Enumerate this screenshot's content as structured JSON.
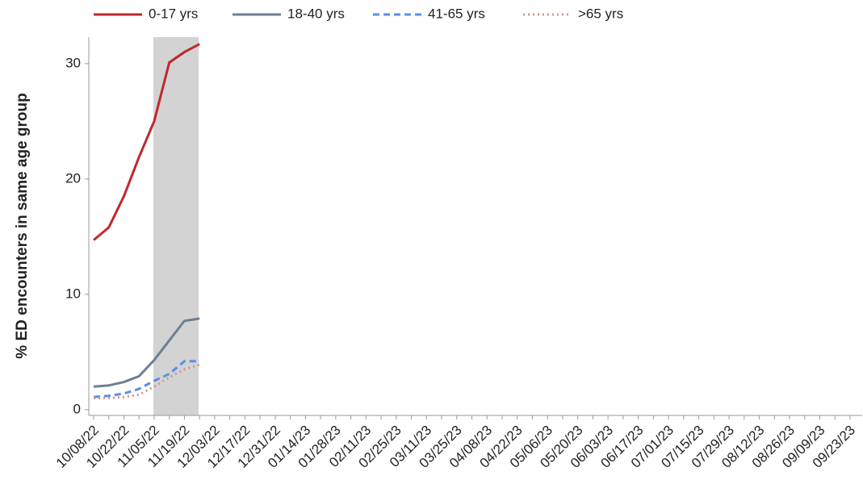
{
  "chart_data": {
    "type": "line",
    "y_label": "% ED encounters in same age group",
    "categories": [
      "10/08/22",
      null,
      "10/22/22",
      null,
      "11/05/22",
      null,
      "11/19/22",
      null,
      "12/03/22",
      null,
      "12/17/22",
      null,
      "12/31/22",
      null,
      "01/14/23",
      null,
      "01/28/23",
      null,
      "02/11/23",
      null,
      "02/25/23",
      null,
      "03/11/23",
      null,
      "03/25/23",
      null,
      "04/08/23",
      null,
      "04/22/23",
      null,
      "05/06/23",
      null,
      "05/20/23",
      null,
      "06/03/23",
      null,
      "06/17/23",
      null,
      "07/01/23",
      null,
      "07/15/23",
      null,
      "07/29/23",
      null,
      "08/12/23",
      null,
      "08/26/23",
      null,
      "09/09/23",
      null,
      "09/23/23"
    ],
    "series": [
      {
        "name": "0-17 yrs",
        "color": "#c0282d",
        "dash": "solid",
        "values": [
          14.7,
          15.8,
          18.5,
          21.9,
          25.0,
          30.1,
          31.0,
          31.7,
          null,
          null,
          null,
          null,
          null,
          null,
          null,
          null,
          null,
          null,
          null,
          null,
          null,
          null,
          null,
          null,
          null,
          null,
          null,
          null,
          null,
          null,
          null,
          null,
          null,
          null,
          null,
          null,
          null,
          null,
          null,
          null,
          null,
          null,
          null,
          null,
          null,
          null,
          null,
          null,
          null,
          null,
          null
        ]
      },
      {
        "name": "18-40 yrs",
        "color": "#6c7f93",
        "dash": "solid",
        "values": [
          2.0,
          2.1,
          2.4,
          2.9,
          4.3,
          6.0,
          7.7,
          7.9,
          null,
          null,
          null,
          null,
          null,
          null,
          null,
          null,
          null,
          null,
          null,
          null,
          null,
          null,
          null,
          null,
          null,
          null,
          null,
          null,
          null,
          null,
          null,
          null,
          null,
          null,
          null,
          null,
          null,
          null,
          null,
          null,
          null,
          null,
          null,
          null,
          null,
          null,
          null,
          null,
          null,
          null,
          null
        ]
      },
      {
        "name": "41-65 yrs",
        "color": "#5b8fe6",
        "dash": "dashed",
        "values": [
          1.1,
          1.2,
          1.4,
          1.8,
          2.5,
          3.1,
          4.2,
          4.2,
          null,
          null,
          null,
          null,
          null,
          null,
          null,
          null,
          null,
          null,
          null,
          null,
          null,
          null,
          null,
          null,
          null,
          null,
          null,
          null,
          null,
          null,
          null,
          null,
          null,
          null,
          null,
          null,
          null,
          null,
          null,
          null,
          null,
          null,
          null,
          null,
          null,
          null,
          null,
          null,
          null,
          null,
          null
        ]
      },
      {
        "name": ">65 yrs",
        "color": "#d4948f",
        "dash": "dotted",
        "values": [
          1.0,
          1.0,
          1.1,
          1.3,
          2.0,
          2.8,
          3.5,
          3.9,
          null,
          null,
          null,
          null,
          null,
          null,
          null,
          null,
          null,
          null,
          null,
          null,
          null,
          null,
          null,
          null,
          null,
          null,
          null,
          null,
          null,
          null,
          null,
          null,
          null,
          null,
          null,
          null,
          null,
          null,
          null,
          null,
          null,
          null,
          null,
          null,
          null,
          null,
          null,
          null,
          null,
          null,
          null
        ]
      }
    ],
    "ylim": [
      -0.5,
      32.3
    ],
    "yticks": [
      0,
      10,
      20,
      30
    ]
  }
}
